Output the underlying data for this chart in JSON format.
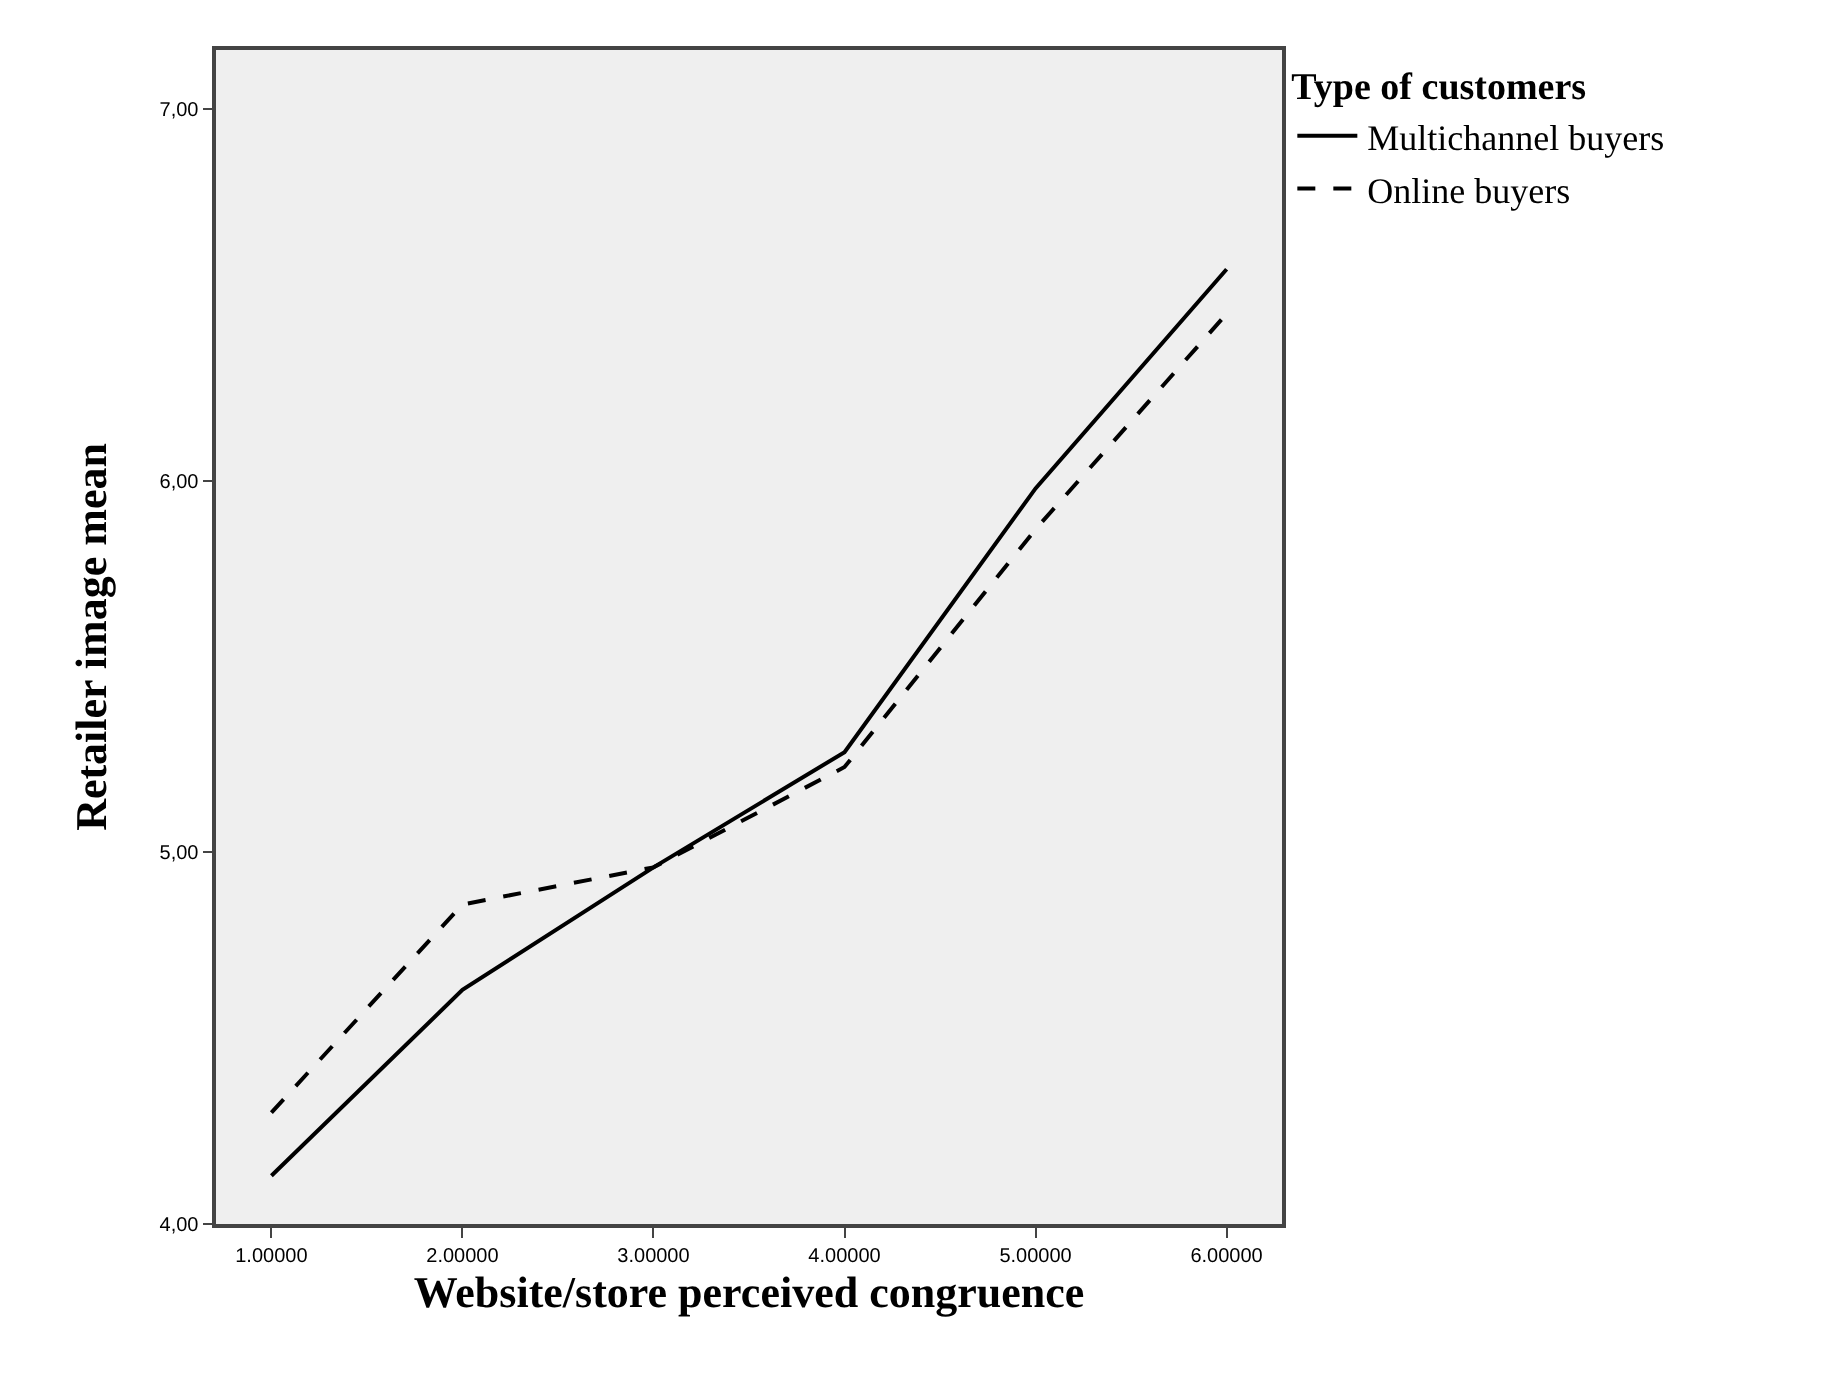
{
  "chart_data": {
    "type": "line",
    "xlabel": "Website/store perceived congruence",
    "ylabel": "Retailer image mean",
    "legend_title": "Type of customers",
    "legend": "top right",
    "x": [
      1,
      2,
      3,
      4,
      5,
      6
    ],
    "series": [
      {
        "name": "Multichannel buyers",
        "color": "#000000",
        "line_style": "solid",
        "values": [
          4.13,
          4.63,
          4.96,
          5.27,
          5.98,
          6.57
        ]
      },
      {
        "name": "Online buyers",
        "color": "#000000",
        "line_style": "dashed",
        "values": [
          4.3,
          4.86,
          4.96,
          5.23,
          5.87,
          6.45
        ]
      }
    ],
    "xlim": [
      0.71,
      6.29
    ],
    "ylim": [
      4.0,
      7.16
    ],
    "xticks": [
      {
        "value": 1,
        "label": "1.00000"
      },
      {
        "value": 2,
        "label": "2.00000"
      },
      {
        "value": 3,
        "label": "3.00000"
      },
      {
        "value": 4,
        "label": "4.00000"
      },
      {
        "value": 5,
        "label": "5.00000"
      },
      {
        "value": 6,
        "label": "6.00000"
      }
    ],
    "yticks": [
      {
        "value": 4,
        "label": "4,00"
      },
      {
        "value": 5,
        "label": "5,00"
      },
      {
        "value": 6,
        "label": "6,00"
      },
      {
        "value": 7,
        "label": "7,00"
      }
    ],
    "grid": false,
    "marker": "none"
  }
}
